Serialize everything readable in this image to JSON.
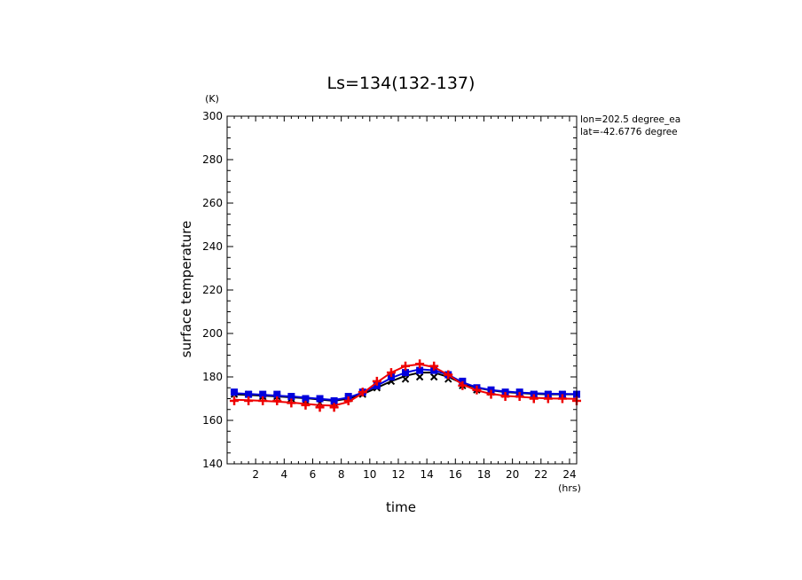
{
  "chart_data": {
    "type": "line",
    "title": "Ls=134(132-137)",
    "xlabel": "time",
    "ylabel": "surface temperature",
    "x_unit": "(hrs)",
    "y_unit": "(K)",
    "xlim": [
      0,
      24.5
    ],
    "ylim": [
      140,
      300
    ],
    "x_ticks": [
      2,
      4,
      6,
      8,
      10,
      12,
      14,
      16,
      18,
      20,
      22,
      24
    ],
    "y_ticks": [
      140,
      160,
      180,
      200,
      220,
      240,
      260,
      280,
      300
    ],
    "annotations": [
      "lon=202.5 degree_ea",
      "lat=-42.6776 degree"
    ],
    "x": [
      0.5,
      1.5,
      2.5,
      3.5,
      4.5,
      5.5,
      6.5,
      7.5,
      8.5,
      9.5,
      10.5,
      11.5,
      12.5,
      13.5,
      14.5,
      15.5,
      16.5,
      17.5,
      18.5,
      19.5,
      20.5,
      21.5,
      22.5,
      23.5,
      24.5
    ],
    "series": [
      {
        "color": "#000000",
        "marker": "x",
        "line": [
          172,
          171.7,
          171.4,
          171,
          170.6,
          170.2,
          169.6,
          169,
          170,
          172,
          175,
          178,
          180.5,
          182,
          182,
          180,
          177,
          175,
          173.8,
          173,
          172.6,
          172.2,
          172,
          172,
          172
        ],
        "points": [
          172,
          172,
          171,
          171,
          170,
          169,
          168,
          168,
          170,
          172,
          175,
          178,
          179,
          180,
          180,
          179,
          176,
          174,
          173,
          172,
          172,
          172,
          172,
          172,
          172
        ]
      },
      {
        "color": "#0000dd",
        "marker": "square",
        "line": [
          172.5,
          172.2,
          171.8,
          171.4,
          171,
          170.5,
          169.9,
          169.4,
          170.5,
          172.8,
          176,
          179.5,
          182,
          183.5,
          183,
          181,
          177.5,
          175.2,
          174,
          173.3,
          172.8,
          172.5,
          172.3,
          172.2,
          172.1
        ],
        "points": [
          173,
          172,
          172,
          172,
          171,
          170,
          170,
          169,
          171,
          173,
          176,
          180,
          182,
          183,
          183,
          181,
          178,
          175,
          174,
          173,
          173,
          172,
          172,
          172,
          172
        ]
      },
      {
        "color": "#ee0000",
        "marker": "plus",
        "line": [
          169.5,
          169.3,
          169,
          168.6,
          168.2,
          167.6,
          167,
          166.8,
          168.5,
          172.5,
          177.5,
          182,
          185,
          185.8,
          184.5,
          181,
          176.5,
          173.8,
          172.2,
          171.3,
          170.8,
          170.4,
          170.1,
          170,
          169.9
        ],
        "points": [
          169,
          169,
          169,
          169,
          168,
          167,
          166,
          166,
          169,
          173,
          178,
          182,
          185,
          186,
          185,
          181,
          176,
          174,
          172,
          171,
          171,
          170,
          170,
          170,
          169
        ]
      }
    ]
  }
}
